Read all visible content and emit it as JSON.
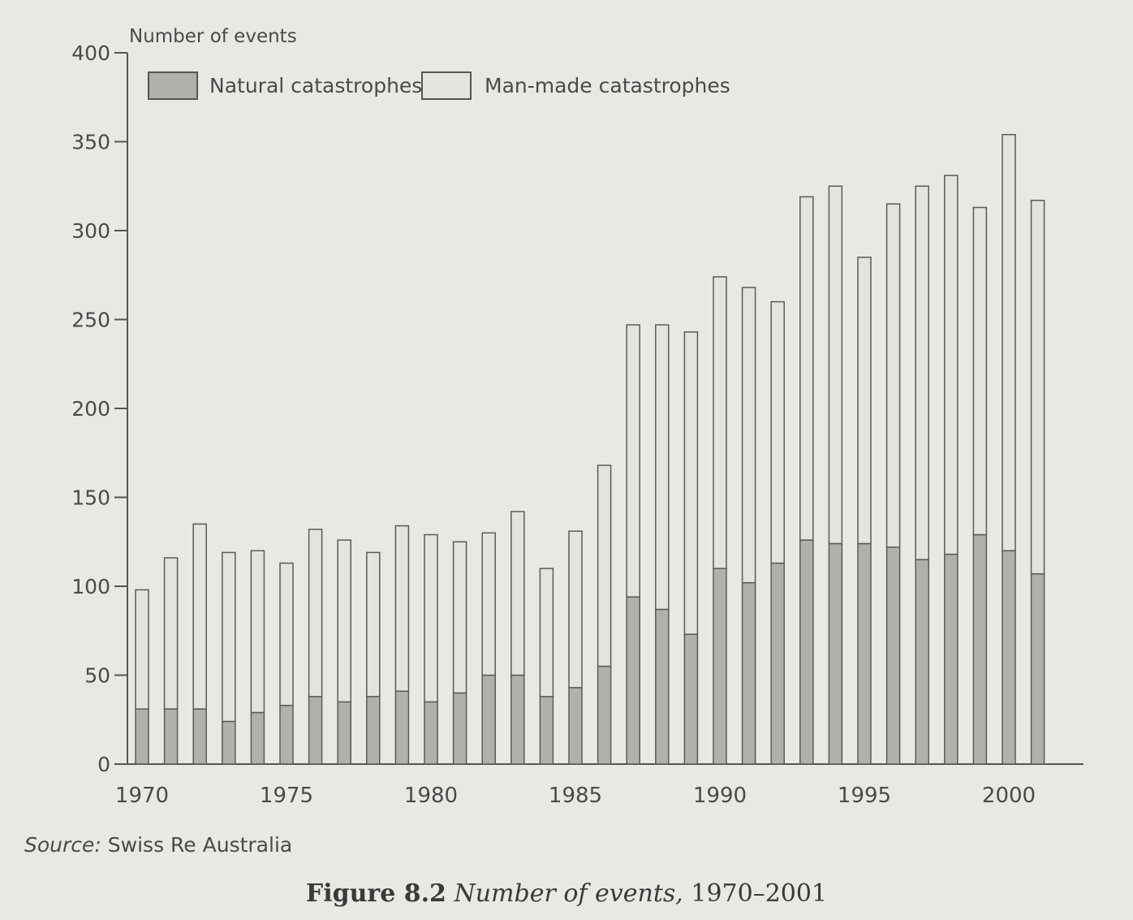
{
  "chart_data": {
    "type": "bar",
    "stacked": true,
    "ylabel": "Number of events",
    "ylim": [
      0,
      400
    ],
    "yticks": [
      0,
      50,
      100,
      150,
      200,
      250,
      300,
      350,
      400
    ],
    "xtick_labels": [
      "1970",
      "1975",
      "1980",
      "1985",
      "1990",
      "1995",
      "2000"
    ],
    "categories": [
      "1970",
      "1971",
      "1972",
      "1973",
      "1974",
      "1975",
      "1976",
      "1977",
      "1978",
      "1979",
      "1980",
      "1981",
      "1982",
      "1983",
      "1984",
      "1985",
      "1986",
      "1987",
      "1988",
      "1989",
      "1990",
      "1991",
      "1992",
      "1993",
      "1994",
      "1995",
      "1996",
      "1997",
      "1998",
      "1999",
      "2000",
      "2001"
    ],
    "series": [
      {
        "name": "Natural catastrophes",
        "color": "#b2b0ab",
        "values": [
          31,
          31,
          31,
          24,
          29,
          33,
          38,
          35,
          38,
          41,
          35,
          40,
          50,
          50,
          38,
          43,
          55,
          94,
          87,
          73,
          110,
          102,
          113,
          126,
          124,
          124,
          122,
          115,
          118,
          129,
          120,
          107
        ]
      },
      {
        "name": "Man-made catastrophes",
        "color": "#e4e3dd",
        "values": [
          67,
          85,
          104,
          95,
          91,
          80,
          94,
          91,
          81,
          93,
          94,
          85,
          80,
          92,
          72,
          88,
          113,
          153,
          160,
          170,
          164,
          166,
          147,
          193,
          201,
          161,
          193,
          210,
          213,
          184,
          234,
          210
        ]
      }
    ],
    "legend": "top-left",
    "grid": false
  },
  "source": {
    "label": "Source:",
    "text": "Swiss Re Australia"
  },
  "caption": {
    "figure_number": "Figure 8.2",
    "title": "Number of events,",
    "years": "1970–2001"
  }
}
